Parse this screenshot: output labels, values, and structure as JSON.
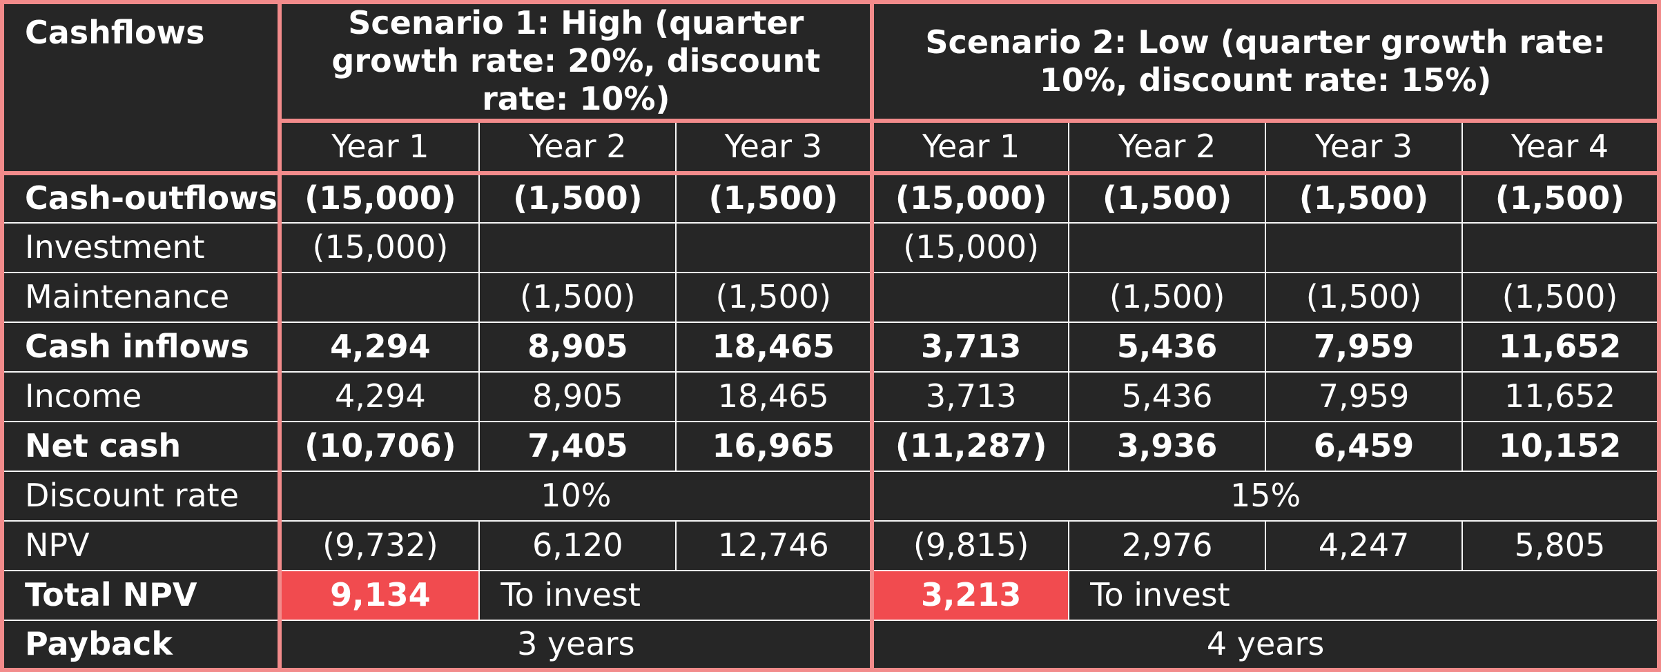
{
  "header": {
    "corner": "Cashflows",
    "scenario1": "Scenario 1: High (quarter growth rate: 20%, discount rate: 10%)",
    "scenario2": "Scenario 2: Low (quarter growth rate: 10%, discount rate: 15%)",
    "s1_years": [
      "Year 1",
      "Year 2",
      "Year 3"
    ],
    "s2_years": [
      "Year 1",
      "Year 2",
      "Year 3",
      "Year 4"
    ]
  },
  "rows": [
    {
      "label": "Cash-outflows",
      "bold": true,
      "s1": [
        "(15,000)",
        "(1,500)",
        "(1,500)"
      ],
      "s2": [
        "(15,000)",
        "(1,500)",
        "(1,500)",
        "(1,500)"
      ]
    },
    {
      "label": "Investment",
      "bold": false,
      "s1": [
        "(15,000)",
        "",
        ""
      ],
      "s2": [
        "(15,000)",
        "",
        "",
        ""
      ]
    },
    {
      "label": "Maintenance",
      "bold": false,
      "s1": [
        "",
        "(1,500)",
        "(1,500)"
      ],
      "s2": [
        "",
        "(1,500)",
        "(1,500)",
        "(1,500)"
      ]
    },
    {
      "label": "Cash inflows",
      "bold": true,
      "s1": [
        "4,294",
        "8,905",
        "18,465"
      ],
      "s2": [
        "3,713",
        "5,436",
        "7,959",
        "11,652"
      ]
    },
    {
      "label": "Income",
      "bold": false,
      "s1": [
        "4,294",
        "8,905",
        "18,465"
      ],
      "s2": [
        "3,713",
        "5,436",
        "7,959",
        "11,652"
      ]
    },
    {
      "label": "Net cash",
      "bold": true,
      "s1": [
        "(10,706)",
        "7,405",
        "16,965"
      ],
      "s2": [
        "(11,287)",
        "3,936",
        "6,459",
        "10,152"
      ]
    }
  ],
  "discount": {
    "label": "Discount rate",
    "s1": "10%",
    "s2": "15%"
  },
  "npv": {
    "label": "NPV",
    "s1": [
      "(9,732)",
      "6,120",
      "12,746"
    ],
    "s2": [
      "(9,815)",
      "2,976",
      "4,247",
      "5,805"
    ]
  },
  "total_npv": {
    "label": "Total NPV",
    "s1_value": "9,134",
    "s1_note": "To invest",
    "s2_value": "3,213",
    "s2_note": "To invest"
  },
  "payback": {
    "label": "Payback",
    "s1": "3 years",
    "s2": "4 years"
  },
  "colors": {
    "background": "#262626",
    "frame": "#f28b8b",
    "highlight": "#f14b4f",
    "grid": "#f7f7f7"
  }
}
